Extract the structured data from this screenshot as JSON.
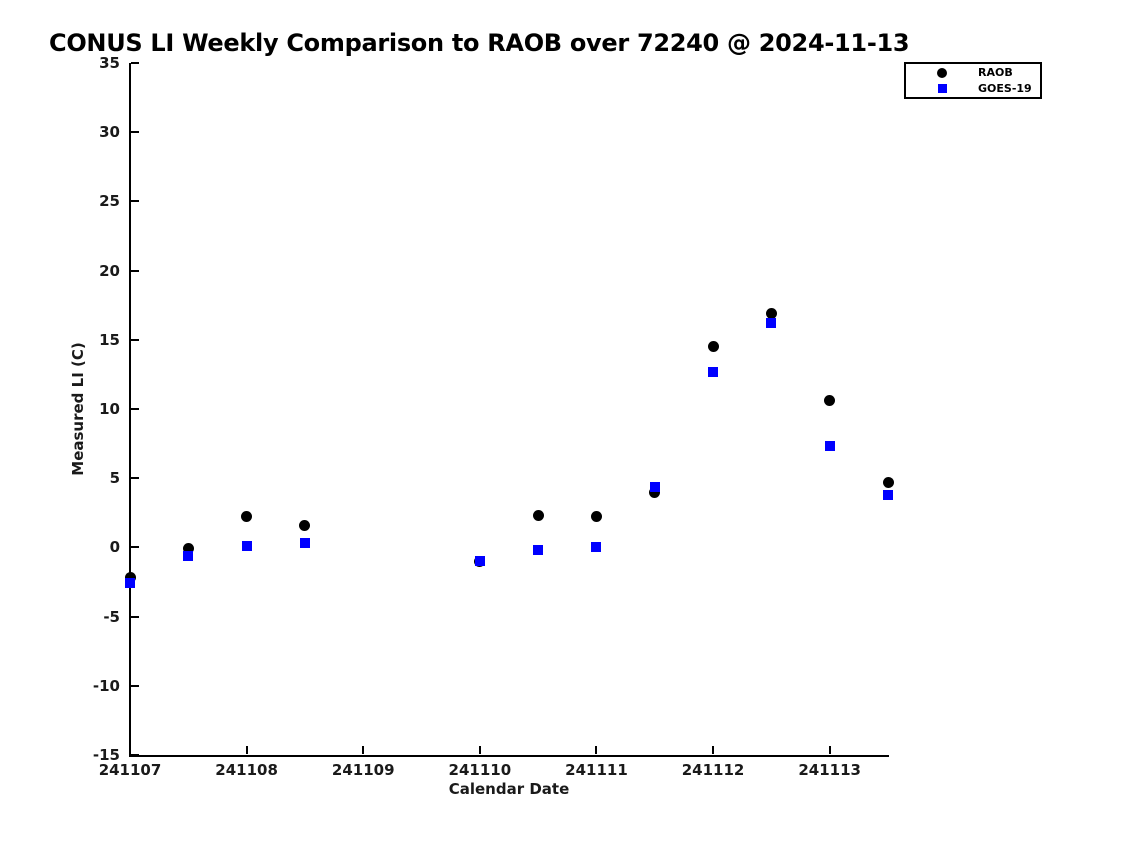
{
  "chart_data": {
    "type": "scatter",
    "title": "CONUS LI Weekly Comparison to RAOB over 72240 @ 2024-11-13",
    "xlabel": "Calendar Date",
    "ylabel": "Measured LI (C)",
    "xlim": [
      241107,
      241113.5
    ],
    "ylim": [
      -15,
      35
    ],
    "x_tick_values": [
      241107,
      241108,
      241109,
      241110,
      241111,
      241112,
      241113
    ],
    "x_tick_labels": [
      "241107",
      "241108",
      "241109",
      "241110",
      "241111",
      "241112",
      "241113"
    ],
    "y_tick_values": [
      35,
      30,
      25,
      20,
      15,
      10,
      5,
      0,
      -5,
      -10,
      -15
    ],
    "y_tick_labels": [
      "35",
      "30",
      "25",
      "20",
      "15",
      "10",
      "5",
      "0",
      "-5",
      "-10",
      "-15"
    ],
    "grid": false,
    "legend_position": "top-right",
    "x": [
      241107,
      241107.5,
      241108,
      241108.5,
      241110,
      241110.5,
      241111,
      241111.5,
      241112,
      241112.5,
      241113,
      241113.5
    ],
    "series": [
      {
        "name": "RAOB",
        "marker": "circle",
        "color": "#000000",
        "values": [
          -2.2,
          -0.1,
          2.2,
          1.6,
          -1.0,
          2.3,
          2.2,
          4.0,
          14.5,
          16.9,
          10.6,
          4.7
        ]
      },
      {
        "name": "GOES-19",
        "marker": "square",
        "color": "#0000ff",
        "values": [
          -2.6,
          -0.6,
          0.1,
          0.3,
          -1.0,
          -0.2,
          0.0,
          4.4,
          12.7,
          16.2,
          7.3,
          3.8
        ]
      }
    ]
  },
  "legend": {
    "items": [
      {
        "label": "RAOB",
        "marker": "circle",
        "color": "#000000"
      },
      {
        "label": "GOES-19",
        "marker": "square",
        "color": "#0000ff"
      }
    ]
  },
  "colors": {
    "background": "#ffffff",
    "axis": "#000000",
    "raob": "#000000",
    "goes19": "#0000ff"
  }
}
